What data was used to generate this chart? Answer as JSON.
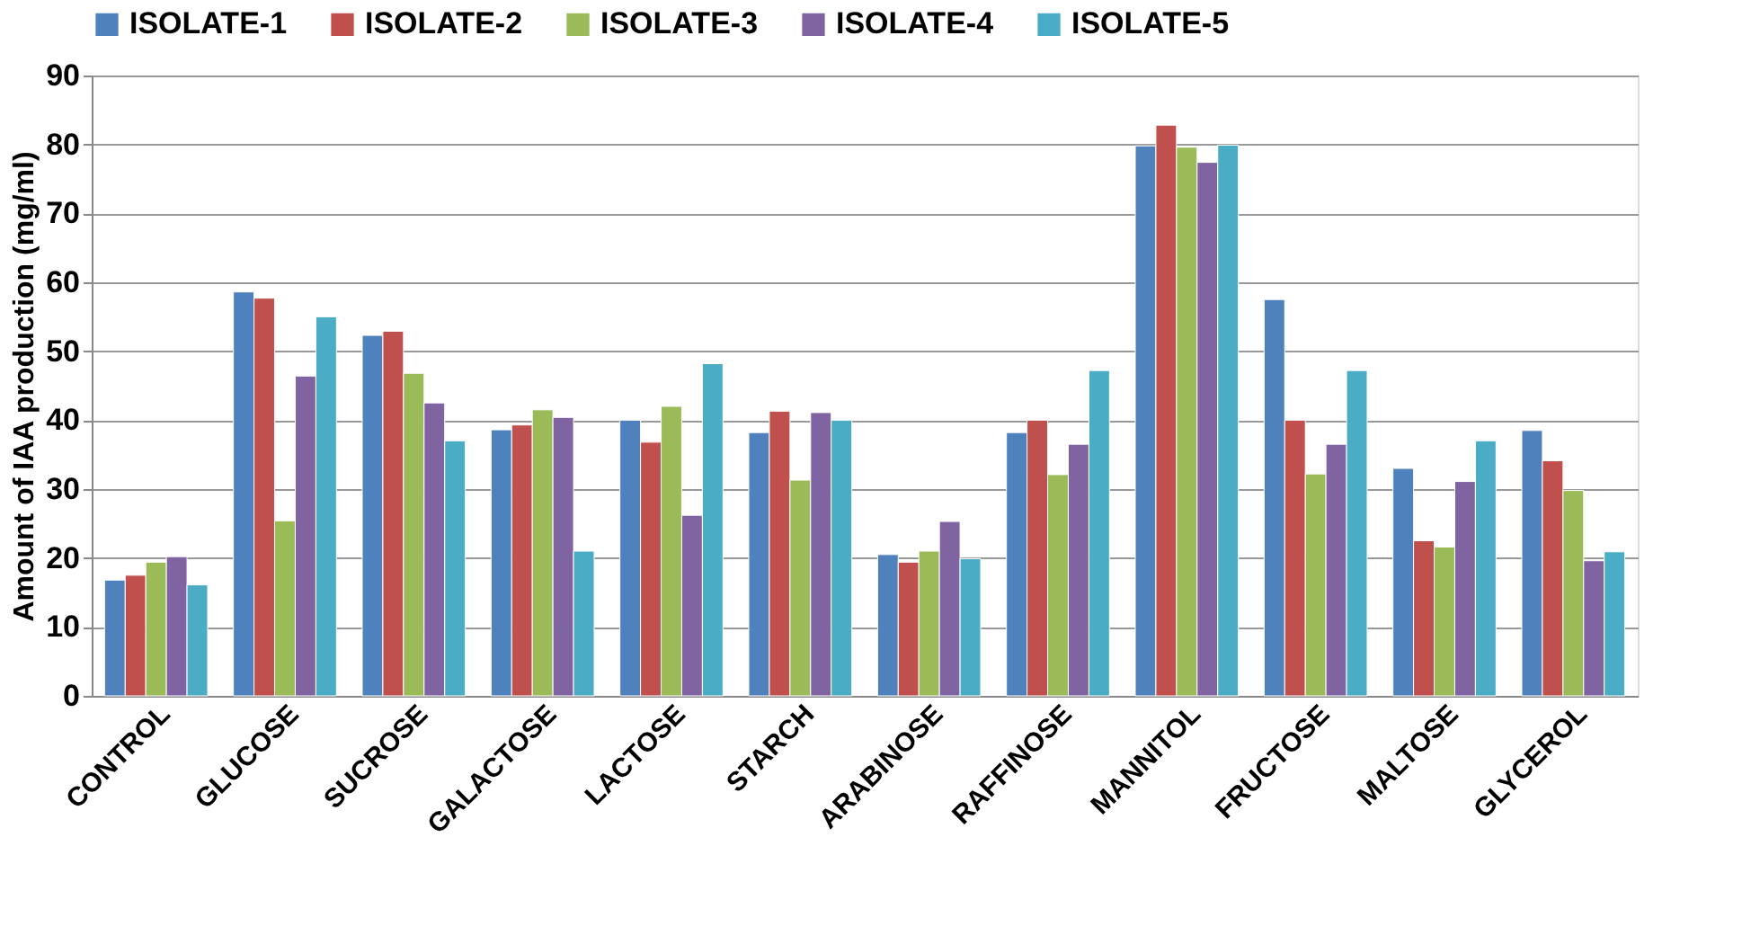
{
  "chart_data": {
    "type": "bar",
    "ylabel": "Amount of IAA production (mg/ml)",
    "categories": [
      "CONTROL",
      "GLUCOSE",
      "SUCROSE",
      "GALACTOSE",
      "LACTOSE",
      "STARCH",
      "ARABINOSE",
      "RAFFINOSE",
      "MANNITOL",
      "FRUCTOSE",
      "MALTOSE",
      "GLYCEROL"
    ],
    "series": [
      {
        "name": "ISOLATE-1",
        "color": "#4f81bd",
        "values": [
          16.8,
          58.6,
          52.3,
          38.6,
          40,
          38.2,
          20.5,
          38.2,
          79.8,
          57.5,
          33,
          38.5
        ]
      },
      {
        "name": "ISOLATE-2",
        "color": "#c0504d",
        "values": [
          17.5,
          57.7,
          52.9,
          39.3,
          36.8,
          41.3,
          19.4,
          40,
          82.8,
          40,
          22.5,
          34.1
        ]
      },
      {
        "name": "ISOLATE-3",
        "color": "#9bbb59",
        "values": [
          19.4,
          25.4,
          46.8,
          41.5,
          42,
          31.3,
          21,
          32.1,
          79.6,
          32.2,
          21.6,
          29.8
        ]
      },
      {
        "name": "ISOLATE-4",
        "color": "#8064a2",
        "values": [
          20.2,
          46.4,
          42.5,
          40.4,
          26.2,
          41.1,
          25.3,
          36.5,
          77.4,
          36.5,
          31.1,
          19.6
        ]
      },
      {
        "name": "ISOLATE-5",
        "color": "#4bacc6",
        "values": [
          16.1,
          55,
          37,
          21,
          48.2,
          40,
          19.9,
          47.2,
          79.9,
          47.2,
          37,
          20.9
        ]
      }
    ],
    "ylim": [
      0,
      90
    ],
    "yticks": [
      0,
      10,
      20,
      30,
      40,
      50,
      60,
      70,
      80,
      90
    ],
    "grid": "y",
    "legend": "top"
  }
}
